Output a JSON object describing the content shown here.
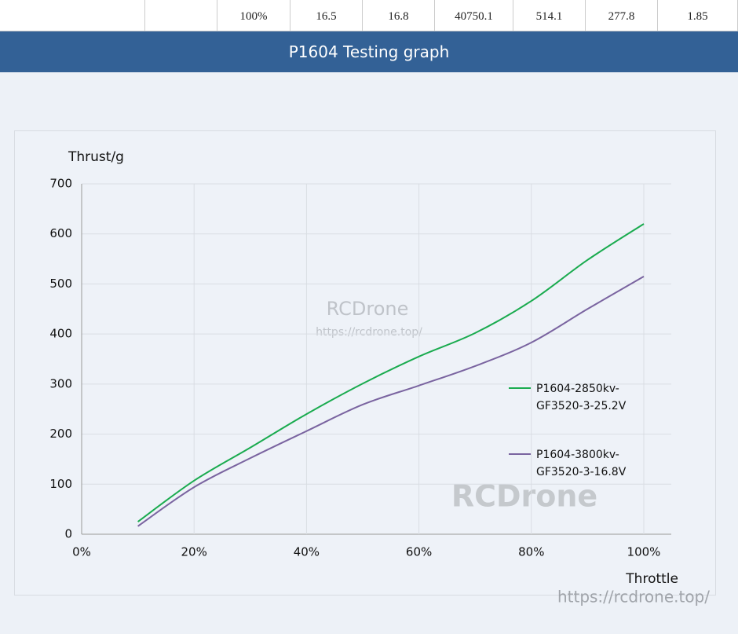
{
  "table": {
    "rows": [
      [
        "100%",
        "16.5",
        "16.8",
        "40750.1",
        "514.1",
        "277.8",
        "1.85"
      ]
    ]
  },
  "banner": {
    "title": "P1604 Testing graph"
  },
  "chart_data": {
    "type": "line",
    "ylabel": "Thrust/g",
    "xlabel": "Throttle",
    "x": [
      10,
      20,
      30,
      40,
      50,
      60,
      70,
      80,
      90,
      100
    ],
    "series": [
      {
        "name": "P1604-2850kv-GF3520-3-25.2V",
        "color": "#1aab4f",
        "values": [
          25,
          107,
          173,
          240,
          301,
          355,
          402,
          466,
          548,
          620
        ]
      },
      {
        "name": "P1604-3800kv-GF3520-3-16.8V",
        "color": "#7a64a0",
        "values": [
          16,
          94,
          152,
          206,
          259,
          297,
          336,
          383,
          450,
          515
        ]
      }
    ],
    "xlim": [
      0,
      100
    ],
    "ylim": [
      0,
      700
    ],
    "xticks": [
      {
        "value": 0,
        "label": "0%"
      },
      {
        "value": 20,
        "label": "20%"
      },
      {
        "value": 40,
        "label": "40%"
      },
      {
        "value": 60,
        "label": "60%"
      },
      {
        "value": 80,
        "label": "80%"
      },
      {
        "value": 100,
        "label": "100%"
      }
    ],
    "yticks": [
      0,
      100,
      200,
      300,
      400,
      500,
      600,
      700
    ],
    "grid": true,
    "legend": "right",
    "watermarks": [
      "RCDrone",
      "https://rcdrone.top/",
      "RCDrone",
      "https://rcdrone.top/"
    ]
  }
}
